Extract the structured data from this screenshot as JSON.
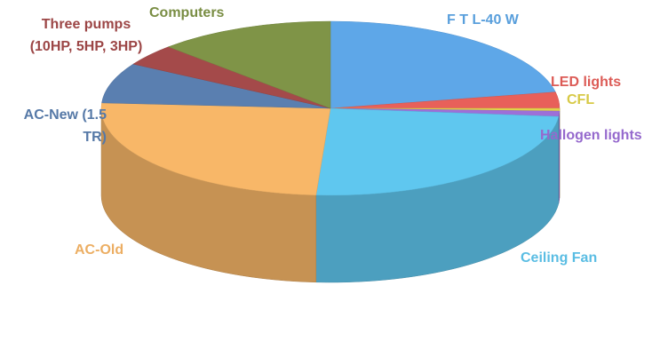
{
  "chart_data": {
    "type": "pie",
    "categories": [
      "F T L-40 W",
      "LED lights",
      "CFL",
      "Hallogen lights",
      "Ceiling Fan",
      "AC-Old",
      "AC-New (1.5 TR)",
      "Three pumps (10HP, 5HP, 3HP)",
      "Computers"
    ],
    "values": [
      22,
      3,
      0.5,
      1,
      24.5,
      25,
      7.5,
      4,
      12.5
    ],
    "colors": [
      "#5ea7e8",
      "#e8605a",
      "#e2d44a",
      "#9d6fd8",
      "#5fc7ef",
      "#f8b768",
      "#5a7fb0",
      "#a44a4a",
      "#7f9447"
    ]
  }
}
